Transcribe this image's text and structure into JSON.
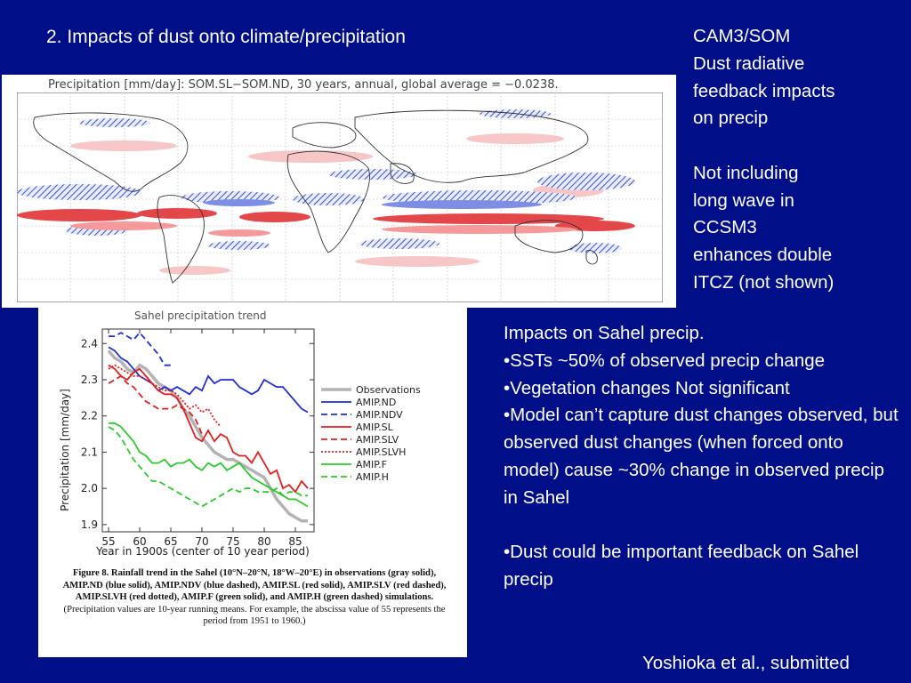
{
  "slide": {
    "title": "2. Impacts of dust onto climate/precipitation",
    "side_notes": [
      "CAM3/SOM",
      "Dust radiative",
      "feedback impacts",
      "on precip",
      "",
      "Not including",
      "long wave in",
      "CCSM3",
      "enhances double",
      "ITCZ (not shown)"
    ],
    "sahel_notes": [
      "Impacts on Sahel precip.",
      "•SSTs ~50% of observed precip change",
      "•Vegetation changes Not significant",
      "•Model can’t capture dust changes observed, but observed dust changes (when forced onto model) cause ~30% change in observed precip in Sahel",
      "",
      "•Dust could be important feedback on Sahel precip"
    ],
    "citation": "Yoshioka et al., submitted"
  },
  "map": {
    "caption": "Precipitation [mm/day]: SOM.SL−SOM.ND, 30 years, annual, global average = −0.0238."
  },
  "figure": {
    "caption_bold": "Figure 8. Rainfall trend in the Sahel (10°N–20°N, 18°W–20°E) in observations (gray solid), AMIP.ND (blue solid), AMIP.NDV (blue dashed), AMIP.SL (red solid), AMIP.SLV (red dashed), AMIP.SLVH (red dotted), AMIP.F (green solid), and AMIP.H (green dashed) simulations.",
    "caption_normal": "(Precipitation values are 10-year running means. For example, the abscissa value of 55 represents the period from 1951 to 1960.)"
  },
  "chart_data": {
    "type": "line",
    "title": "Sahel precipitation trend",
    "xlabel": "Year in 1900s (center of 10 year period)",
    "ylabel": "Precipitation [mm/day]",
    "xlim": [
      54,
      88
    ],
    "ylim": [
      1.88,
      2.44
    ],
    "xticks": [
      55,
      60,
      65,
      70,
      75,
      80,
      85
    ],
    "yticks": [
      1.9,
      2.0,
      2.1,
      2.2,
      2.3,
      2.4
    ],
    "legend_position": "right",
    "series": [
      {
        "name": "Observations",
        "color": "#b3b3b3",
        "style": "solid",
        "x": [
          55,
          56,
          57,
          58,
          59,
          60,
          61,
          62,
          63,
          64,
          65,
          66,
          67,
          68,
          69,
          70,
          71,
          72,
          73,
          74,
          75,
          76,
          77,
          78,
          79,
          80,
          81,
          82,
          83,
          84,
          85,
          86,
          87
        ],
        "y": [
          2.38,
          2.36,
          2.35,
          2.33,
          2.32,
          2.34,
          2.33,
          2.31,
          2.29,
          2.28,
          2.27,
          2.25,
          2.22,
          2.2,
          2.17,
          2.14,
          2.12,
          2.1,
          2.09,
          2.08,
          2.08,
          2.07,
          2.06,
          2.05,
          2.04,
          2.03,
          2.0,
          1.97,
          1.95,
          1.93,
          1.92,
          1.91,
          1.91
        ]
      },
      {
        "name": "AMIP.ND",
        "color": "#1f2fd4",
        "style": "solid",
        "x": [
          55,
          56,
          57,
          58,
          59,
          60,
          61,
          62,
          63,
          64,
          65,
          66,
          67,
          68,
          69,
          70,
          71,
          72,
          73,
          74,
          75,
          76,
          77,
          78,
          79,
          80,
          81,
          82,
          83,
          84,
          85,
          86,
          87
        ],
        "y": [
          2.39,
          2.38,
          2.36,
          2.35,
          2.33,
          2.31,
          2.3,
          2.29,
          2.27,
          2.28,
          2.27,
          2.28,
          2.27,
          2.26,
          2.28,
          2.27,
          2.31,
          2.29,
          2.3,
          2.3,
          2.3,
          2.28,
          2.27,
          2.26,
          2.27,
          2.3,
          2.29,
          2.28,
          2.28,
          2.26,
          2.24,
          2.22,
          2.21
        ]
      },
      {
        "name": "AMIP.NDV",
        "color": "#1f2fd4",
        "style": "dashed",
        "x": [
          55,
          56,
          57,
          58,
          59,
          60,
          61,
          62,
          63,
          64,
          65
        ],
        "y": [
          2.42,
          2.42,
          2.43,
          2.42,
          2.41,
          2.43,
          2.41,
          2.39,
          2.37,
          2.34,
          2.34
        ]
      },
      {
        "name": "AMIP.SL",
        "color": "#e02020",
        "style": "solid",
        "x": [
          55,
          56,
          57,
          58,
          59,
          60,
          61,
          62,
          63,
          64,
          65,
          66,
          67,
          68,
          69,
          70,
          71,
          72,
          73,
          74,
          75,
          76,
          77,
          78,
          79,
          80,
          81,
          82,
          83,
          84,
          85,
          86,
          87
        ],
        "y": [
          2.34,
          2.33,
          2.31,
          2.3,
          2.32,
          2.33,
          2.31,
          2.29,
          2.27,
          2.26,
          2.26,
          2.25,
          2.22,
          2.18,
          2.14,
          2.13,
          2.16,
          2.13,
          2.15,
          2.14,
          2.1,
          2.09,
          2.09,
          2.07,
          2.1,
          2.07,
          2.04,
          2.05,
          2.0,
          2.01,
          1.99,
          2.02,
          2.0
        ]
      },
      {
        "name": "AMIP.SLV",
        "color": "#e02020",
        "style": "dashed",
        "x": [
          55,
          56,
          57,
          58,
          59,
          60,
          61,
          62,
          63,
          64,
          65,
          66,
          67,
          68,
          69,
          70
        ],
        "y": [
          2.29,
          2.3,
          2.31,
          2.29,
          2.28,
          2.26,
          2.24,
          2.23,
          2.22,
          2.22,
          2.22,
          2.23,
          2.22,
          2.21,
          2.19,
          2.15
        ]
      },
      {
        "name": "AMIP.SLVH",
        "color": "#e02020",
        "style": "dotted",
        "x": [
          55,
          56,
          57,
          58,
          59,
          60,
          61,
          62,
          63,
          64,
          65,
          66,
          67,
          68,
          69,
          70,
          71,
          72,
          73
        ],
        "y": [
          2.33,
          2.34,
          2.33,
          2.32,
          2.31,
          2.31,
          2.3,
          2.29,
          2.28,
          2.27,
          2.27,
          2.26,
          2.24,
          2.22,
          2.23,
          2.21,
          2.22,
          2.19,
          2.17
        ]
      },
      {
        "name": "AMIP.F",
        "color": "#2ec82e",
        "style": "solid",
        "x": [
          55,
          56,
          57,
          58,
          59,
          60,
          61,
          62,
          63,
          64,
          65,
          66,
          67,
          68,
          69,
          70,
          71,
          72,
          73,
          74,
          75,
          76,
          77,
          78,
          79,
          80,
          81,
          82,
          83,
          84,
          85,
          86,
          87
        ],
        "y": [
          2.18,
          2.18,
          2.17,
          2.15,
          2.13,
          2.1,
          2.09,
          2.07,
          2.07,
          2.08,
          2.06,
          2.07,
          2.07,
          2.08,
          2.06,
          2.05,
          2.07,
          2.06,
          2.07,
          2.05,
          2.06,
          2.07,
          2.05,
          2.03,
          2.02,
          2.01,
          2.0,
          1.99,
          1.98,
          1.97,
          1.97,
          1.96,
          1.95
        ]
      },
      {
        "name": "AMIP.H",
        "color": "#2ec82e",
        "style": "dashed",
        "x": [
          55,
          56,
          57,
          58,
          59,
          60,
          61,
          62,
          63,
          64,
          65,
          66,
          67,
          68,
          69,
          70,
          71,
          72,
          73,
          74,
          75,
          76,
          77,
          78,
          79,
          80,
          81,
          82,
          83,
          84,
          85,
          86,
          87
        ],
        "y": [
          2.17,
          2.16,
          2.14,
          2.11,
          2.08,
          2.06,
          2.04,
          2.02,
          2.02,
          2.01,
          2.0,
          1.99,
          1.98,
          1.97,
          1.96,
          1.95,
          1.96,
          1.97,
          1.98,
          1.99,
          2.0,
          1.99,
          2.0,
          2.0,
          1.99,
          1.99,
          1.99,
          2.0,
          1.98,
          1.99,
          1.99,
          1.98,
          1.98
        ]
      }
    ]
  }
}
